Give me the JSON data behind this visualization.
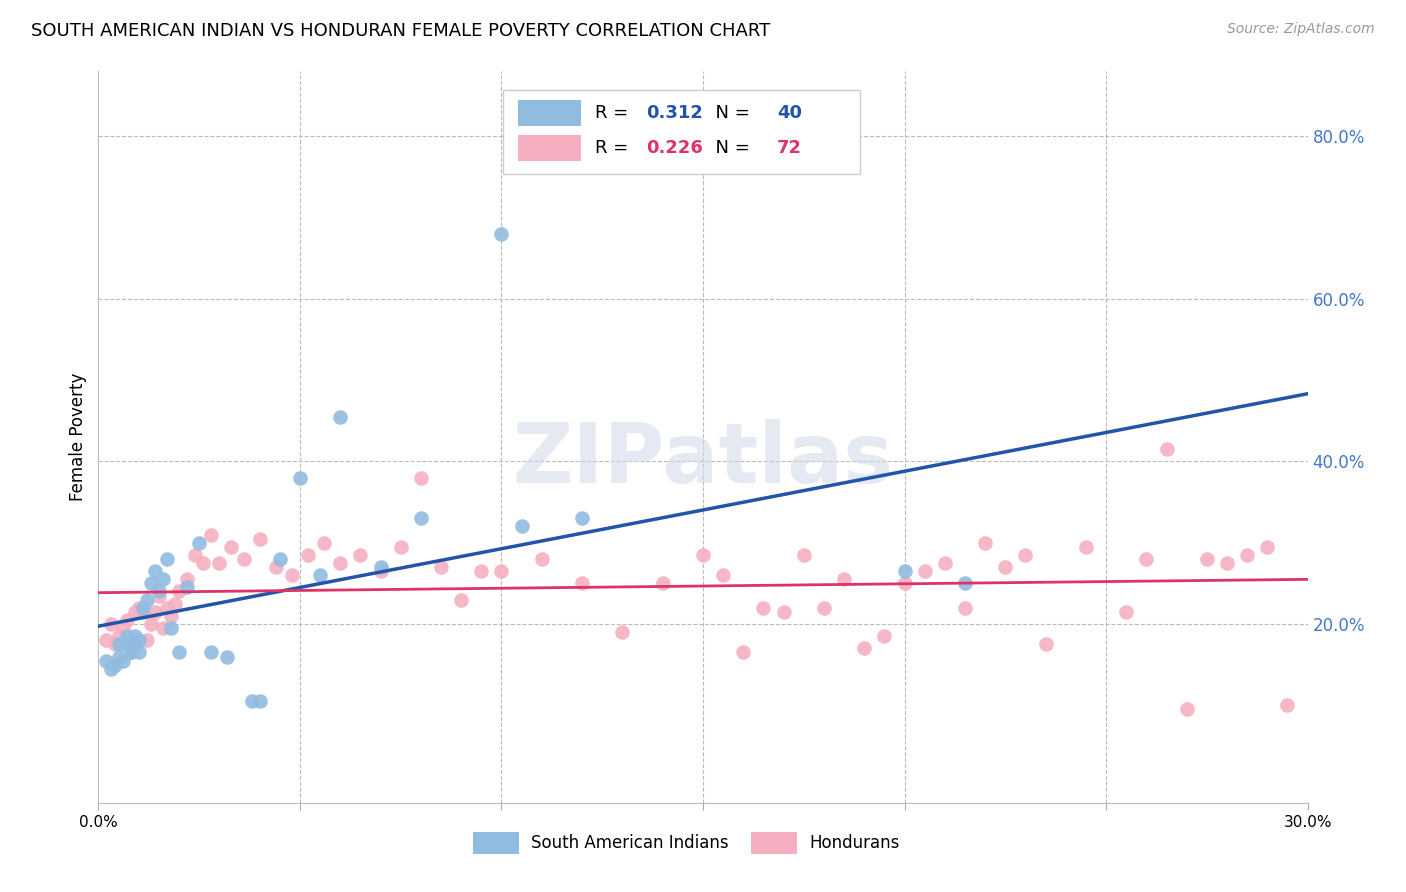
{
  "title": "SOUTH AMERICAN INDIAN VS HONDURAN FEMALE POVERTY CORRELATION CHART",
  "source": "Source: ZipAtlas.com",
  "ylabel": "Female Poverty",
  "xlim": [
    0.0,
    0.3
  ],
  "ylim": [
    -0.02,
    0.88
  ],
  "y_ticks": [
    0.0,
    0.2,
    0.4,
    0.6,
    0.8
  ],
  "y_tick_labels": [
    "",
    "20.0%",
    "40.0%",
    "60.0%",
    "80.0%"
  ],
  "x_ticks": [
    0.0,
    0.05,
    0.1,
    0.15,
    0.2,
    0.25,
    0.3
  ],
  "x_tick_labels": [
    "0.0%",
    "",
    "",
    "",
    "",
    "",
    "30.0%"
  ],
  "blue_R": 0.312,
  "blue_N": 40,
  "pink_R": 0.226,
  "pink_N": 72,
  "blue_color": "#90bce0",
  "pink_color": "#f5afc0",
  "blue_line_color": "#2255aa",
  "pink_line_color": "#dd3366",
  "watermark": "ZIPatlas",
  "legend_label_blue": "South American Indians",
  "legend_label_pink": "Hondurans",
  "blue_x": [
    0.002,
    0.003,
    0.004,
    0.005,
    0.005,
    0.006,
    0.007,
    0.007,
    0.008,
    0.008,
    0.009,
    0.009,
    0.01,
    0.01,
    0.011,
    0.012,
    0.013,
    0.014,
    0.015,
    0.016,
    0.017,
    0.018,
    0.02,
    0.022,
    0.025,
    0.028,
    0.032,
    0.038,
    0.04,
    0.045,
    0.05,
    0.055,
    0.06,
    0.07,
    0.08,
    0.1,
    0.105,
    0.12,
    0.2,
    0.215
  ],
  "blue_y": [
    0.155,
    0.145,
    0.15,
    0.16,
    0.175,
    0.155,
    0.175,
    0.185,
    0.165,
    0.165,
    0.175,
    0.185,
    0.165,
    0.18,
    0.22,
    0.23,
    0.25,
    0.265,
    0.24,
    0.255,
    0.28,
    0.195,
    0.165,
    0.245,
    0.3,
    0.165,
    0.16,
    0.105,
    0.105,
    0.28,
    0.38,
    0.26,
    0.455,
    0.27,
    0.33,
    0.68,
    0.32,
    0.33,
    0.265,
    0.25
  ],
  "pink_x": [
    0.002,
    0.003,
    0.004,
    0.005,
    0.006,
    0.007,
    0.008,
    0.009,
    0.01,
    0.011,
    0.012,
    0.013,
    0.014,
    0.015,
    0.016,
    0.017,
    0.018,
    0.019,
    0.02,
    0.022,
    0.024,
    0.026,
    0.028,
    0.03,
    0.033,
    0.036,
    0.04,
    0.044,
    0.048,
    0.052,
    0.056,
    0.06,
    0.065,
    0.07,
    0.075,
    0.08,
    0.085,
    0.09,
    0.095,
    0.1,
    0.11,
    0.12,
    0.13,
    0.14,
    0.15,
    0.155,
    0.16,
    0.165,
    0.17,
    0.175,
    0.18,
    0.185,
    0.19,
    0.195,
    0.2,
    0.205,
    0.21,
    0.215,
    0.22,
    0.225,
    0.23,
    0.235,
    0.245,
    0.255,
    0.26,
    0.265,
    0.27,
    0.275,
    0.28,
    0.285,
    0.29,
    0.295
  ],
  "pink_y": [
    0.18,
    0.2,
    0.175,
    0.185,
    0.195,
    0.205,
    0.175,
    0.215,
    0.22,
    0.215,
    0.18,
    0.2,
    0.215,
    0.235,
    0.195,
    0.22,
    0.21,
    0.225,
    0.24,
    0.255,
    0.285,
    0.275,
    0.31,
    0.275,
    0.295,
    0.28,
    0.305,
    0.27,
    0.26,
    0.285,
    0.3,
    0.275,
    0.285,
    0.265,
    0.295,
    0.38,
    0.27,
    0.23,
    0.265,
    0.265,
    0.28,
    0.25,
    0.19,
    0.25,
    0.285,
    0.26,
    0.165,
    0.22,
    0.215,
    0.285,
    0.22,
    0.255,
    0.17,
    0.185,
    0.25,
    0.265,
    0.275,
    0.22,
    0.3,
    0.27,
    0.285,
    0.175,
    0.295,
    0.215,
    0.28,
    0.415,
    0.095,
    0.28,
    0.275,
    0.285,
    0.295,
    0.1
  ]
}
